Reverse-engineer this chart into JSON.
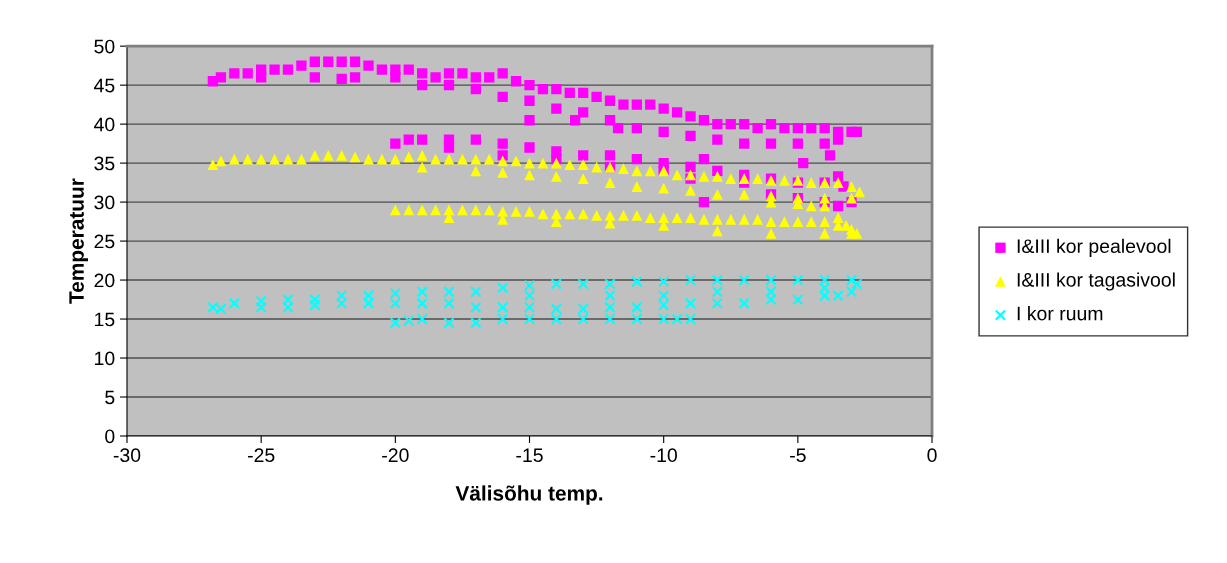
{
  "chart_data": {
    "type": "scatter",
    "xlabel": "Välisõhu temp.",
    "ylabel": "Temperatuur",
    "xlim": [
      -30,
      0
    ],
    "xticks": [
      -30,
      -25,
      -20,
      -15,
      -10,
      -5,
      0
    ],
    "ylim": [
      0,
      50
    ],
    "yticks": [
      0,
      5,
      10,
      15,
      20,
      25,
      30,
      35,
      40,
      45,
      50
    ],
    "grid": "y",
    "legend": "right",
    "series": [
      {
        "name": "I&III kor pealevool",
        "color": "#ff00ff",
        "marker": "square",
        "x": [
          -26.8,
          -26.5,
          -26,
          -25.5,
          -25,
          -24.5,
          -24,
          -23.5,
          -23,
          -22.5,
          -22,
          -21.5,
          -21,
          -20.5,
          -20,
          -19.5,
          -19,
          -18.5,
          -18,
          -17.5,
          -17,
          -16.5,
          -16,
          -15.5,
          -15,
          -14.5,
          -14,
          -13.5,
          -13,
          -12.5,
          -12,
          -11.5,
          -11,
          -10.5,
          -10,
          -9.5,
          -9,
          -8.5,
          -8,
          -7.5,
          -7,
          -6.5,
          -6,
          -5.5,
          -5,
          -4.5,
          -4,
          -3.5,
          -3,
          -2.8,
          -25,
          -23,
          -22,
          -20,
          -19,
          -18,
          -17,
          -16,
          -15,
          -14,
          -13,
          -12,
          -11,
          -10,
          -9,
          -8,
          -7,
          -6,
          -5,
          -4,
          -3.5,
          -15,
          -13.3,
          -11.7,
          -4.8,
          -3.8,
          -3.5,
          -8.5,
          -21.5,
          -20,
          -19.5,
          -19,
          -18,
          -17,
          -16,
          -15,
          -14,
          -13,
          -12,
          -11,
          -10,
          -9,
          -8.5,
          -8,
          -7,
          -6,
          -5,
          -4,
          -3.3,
          -3,
          -18,
          -16,
          -14,
          -12,
          -10,
          -9,
          -7,
          -6,
          -5,
          -4,
          -3.5
        ],
        "values": [
          45.5,
          46,
          46.5,
          46.5,
          47,
          47,
          47,
          47.5,
          48,
          48,
          48,
          48,
          47.5,
          47,
          47,
          47,
          46.5,
          46,
          46.5,
          46.5,
          46,
          46,
          46.5,
          45.5,
          45,
          44.5,
          44.5,
          44,
          44,
          43.5,
          43,
          42.5,
          42.5,
          42.5,
          42,
          41.5,
          41,
          40.5,
          40,
          40,
          40,
          39.5,
          40,
          39.5,
          39.5,
          39.5,
          39.5,
          39,
          39,
          39,
          46,
          46,
          45.8,
          46,
          45,
          45,
          44.5,
          43.5,
          43,
          42,
          41.5,
          40.5,
          39.5,
          39,
          38.5,
          38,
          37.5,
          37.5,
          37.5,
          37.5,
          38,
          40.5,
          40.5,
          39.5,
          35,
          36,
          33.3,
          30,
          46,
          37.5,
          38,
          38,
          38,
          38,
          37.5,
          37,
          36.5,
          36,
          36,
          35.5,
          35,
          34.5,
          35.5,
          34,
          33.5,
          33,
          32.5,
          32.5,
          32,
          30,
          37,
          36,
          35.5,
          34.5,
          34,
          33,
          32.5,
          31,
          30.5,
          30,
          29.5
        ]
      },
      {
        "name": "I&III kor tagasivool",
        "color": "#ffff00",
        "marker": "triangle",
        "x": [
          -26.8,
          -26.5,
          -26,
          -25.5,
          -25,
          -24.5,
          -24,
          -23.5,
          -23,
          -22.5,
          -22,
          -21.5,
          -21,
          -20.5,
          -20,
          -19.5,
          -19,
          -18.5,
          -18,
          -17.5,
          -17,
          -16.5,
          -16,
          -15.5,
          -15,
          -14.5,
          -14,
          -13.5,
          -13,
          -12.5,
          -12,
          -11.5,
          -11,
          -10.5,
          -10,
          -9.5,
          -9,
          -8.5,
          -8,
          -7.5,
          -7,
          -6.5,
          -6,
          -5.5,
          -5,
          -4.5,
          -4,
          -3.5,
          -3,
          -2.7,
          -19,
          -17,
          -16,
          -15,
          -14,
          -13,
          -12,
          -11,
          -10,
          -9,
          -8,
          -7,
          -6,
          -5,
          -4,
          -3,
          -6,
          -5,
          -4.5,
          -4,
          -3.5,
          -3.2,
          -20,
          -19.5,
          -19,
          -18.5,
          -18,
          -17.5,
          -17,
          -16.5,
          -16,
          -15.5,
          -15,
          -14.5,
          -14,
          -13.5,
          -13,
          -12.5,
          -12,
          -11.5,
          -11,
          -10.5,
          -10,
          -9.5,
          -9,
          -8.5,
          -8,
          -7.5,
          -7,
          -6.5,
          -6,
          -5.5,
          -5,
          -4.5,
          -4,
          -3.5,
          -3,
          -2.8,
          -18,
          -16,
          -14,
          -12,
          -10,
          -8,
          -6,
          -4,
          -3
        ],
        "values": [
          34.8,
          35.3,
          35.5,
          35.5,
          35.5,
          35.5,
          35.5,
          35.5,
          36,
          36,
          36,
          35.8,
          35.5,
          35.5,
          35.5,
          35.8,
          36,
          35.5,
          35.5,
          35.5,
          35.5,
          35.5,
          35.3,
          35.3,
          35,
          35,
          35,
          34.8,
          34.8,
          34.5,
          34.5,
          34.3,
          34,
          34,
          34,
          33.5,
          33.5,
          33.3,
          33.3,
          33,
          33,
          33,
          32.8,
          32.8,
          32.8,
          32.5,
          32.5,
          32.5,
          32,
          31.3,
          34.5,
          34,
          33.8,
          33.5,
          33.3,
          33,
          32.5,
          32,
          31.8,
          31.5,
          31,
          31,
          30.8,
          30.5,
          30.5,
          30.5,
          30,
          29.8,
          29.5,
          29.5,
          28,
          27,
          29,
          29,
          29,
          29,
          29,
          29,
          29,
          29,
          28.8,
          28.8,
          28.8,
          28.5,
          28.5,
          28.5,
          28.5,
          28.3,
          28.3,
          28.3,
          28.3,
          28,
          28,
          28,
          28,
          27.8,
          27.8,
          27.8,
          27.8,
          27.8,
          27.5,
          27.5,
          27.5,
          27.5,
          27.5,
          27,
          26.5,
          26,
          28,
          27.8,
          27.5,
          27.3,
          27,
          26.3,
          26,
          26,
          26
        ]
      },
      {
        "name": "I kor ruum",
        "color": "#00ffff",
        "marker": "cross",
        "x": [
          -26.8,
          -26,
          -25,
          -24,
          -23,
          -22,
          -21,
          -20,
          -19,
          -18,
          -17,
          -16,
          -15,
          -14,
          -13,
          -12,
          -11,
          -10,
          -9,
          -8,
          -7,
          -6,
          -5,
          -4,
          -3,
          -2.8,
          -26.5,
          -25,
          -24,
          -23,
          -22,
          -21,
          -20,
          -19,
          -18,
          -17,
          -16,
          -15,
          -14,
          -13,
          -12,
          -11,
          -10,
          -9,
          -8,
          -7,
          -6,
          -5,
          -4,
          -3.5,
          -3,
          -15,
          -12,
          -10,
          -8,
          -6,
          -4,
          -20,
          -19.5,
          -19,
          -18,
          -17,
          -16,
          -15,
          -14,
          -13,
          -12,
          -11,
          -10,
          -9.5,
          -9
        ],
        "values": [
          16.5,
          17,
          17.3,
          17.5,
          17.5,
          18,
          18,
          18.3,
          18.5,
          18.5,
          18.5,
          19,
          19.3,
          19.5,
          19.5,
          19.5,
          19.8,
          19.8,
          20,
          20,
          20,
          20,
          20,
          20,
          20,
          19.5,
          16.3,
          16.5,
          16.5,
          16.8,
          17,
          17,
          17,
          17,
          17,
          16.5,
          16.5,
          16.5,
          16.3,
          16.3,
          16.5,
          16.5,
          16.8,
          17,
          17,
          17,
          17.5,
          17.5,
          18,
          18,
          18.5,
          18,
          18,
          18,
          18.5,
          18.5,
          19,
          14.5,
          14.8,
          15,
          14.5,
          14.5,
          15,
          15,
          15,
          15,
          15,
          15,
          15,
          15,
          15
        ]
      }
    ]
  }
}
